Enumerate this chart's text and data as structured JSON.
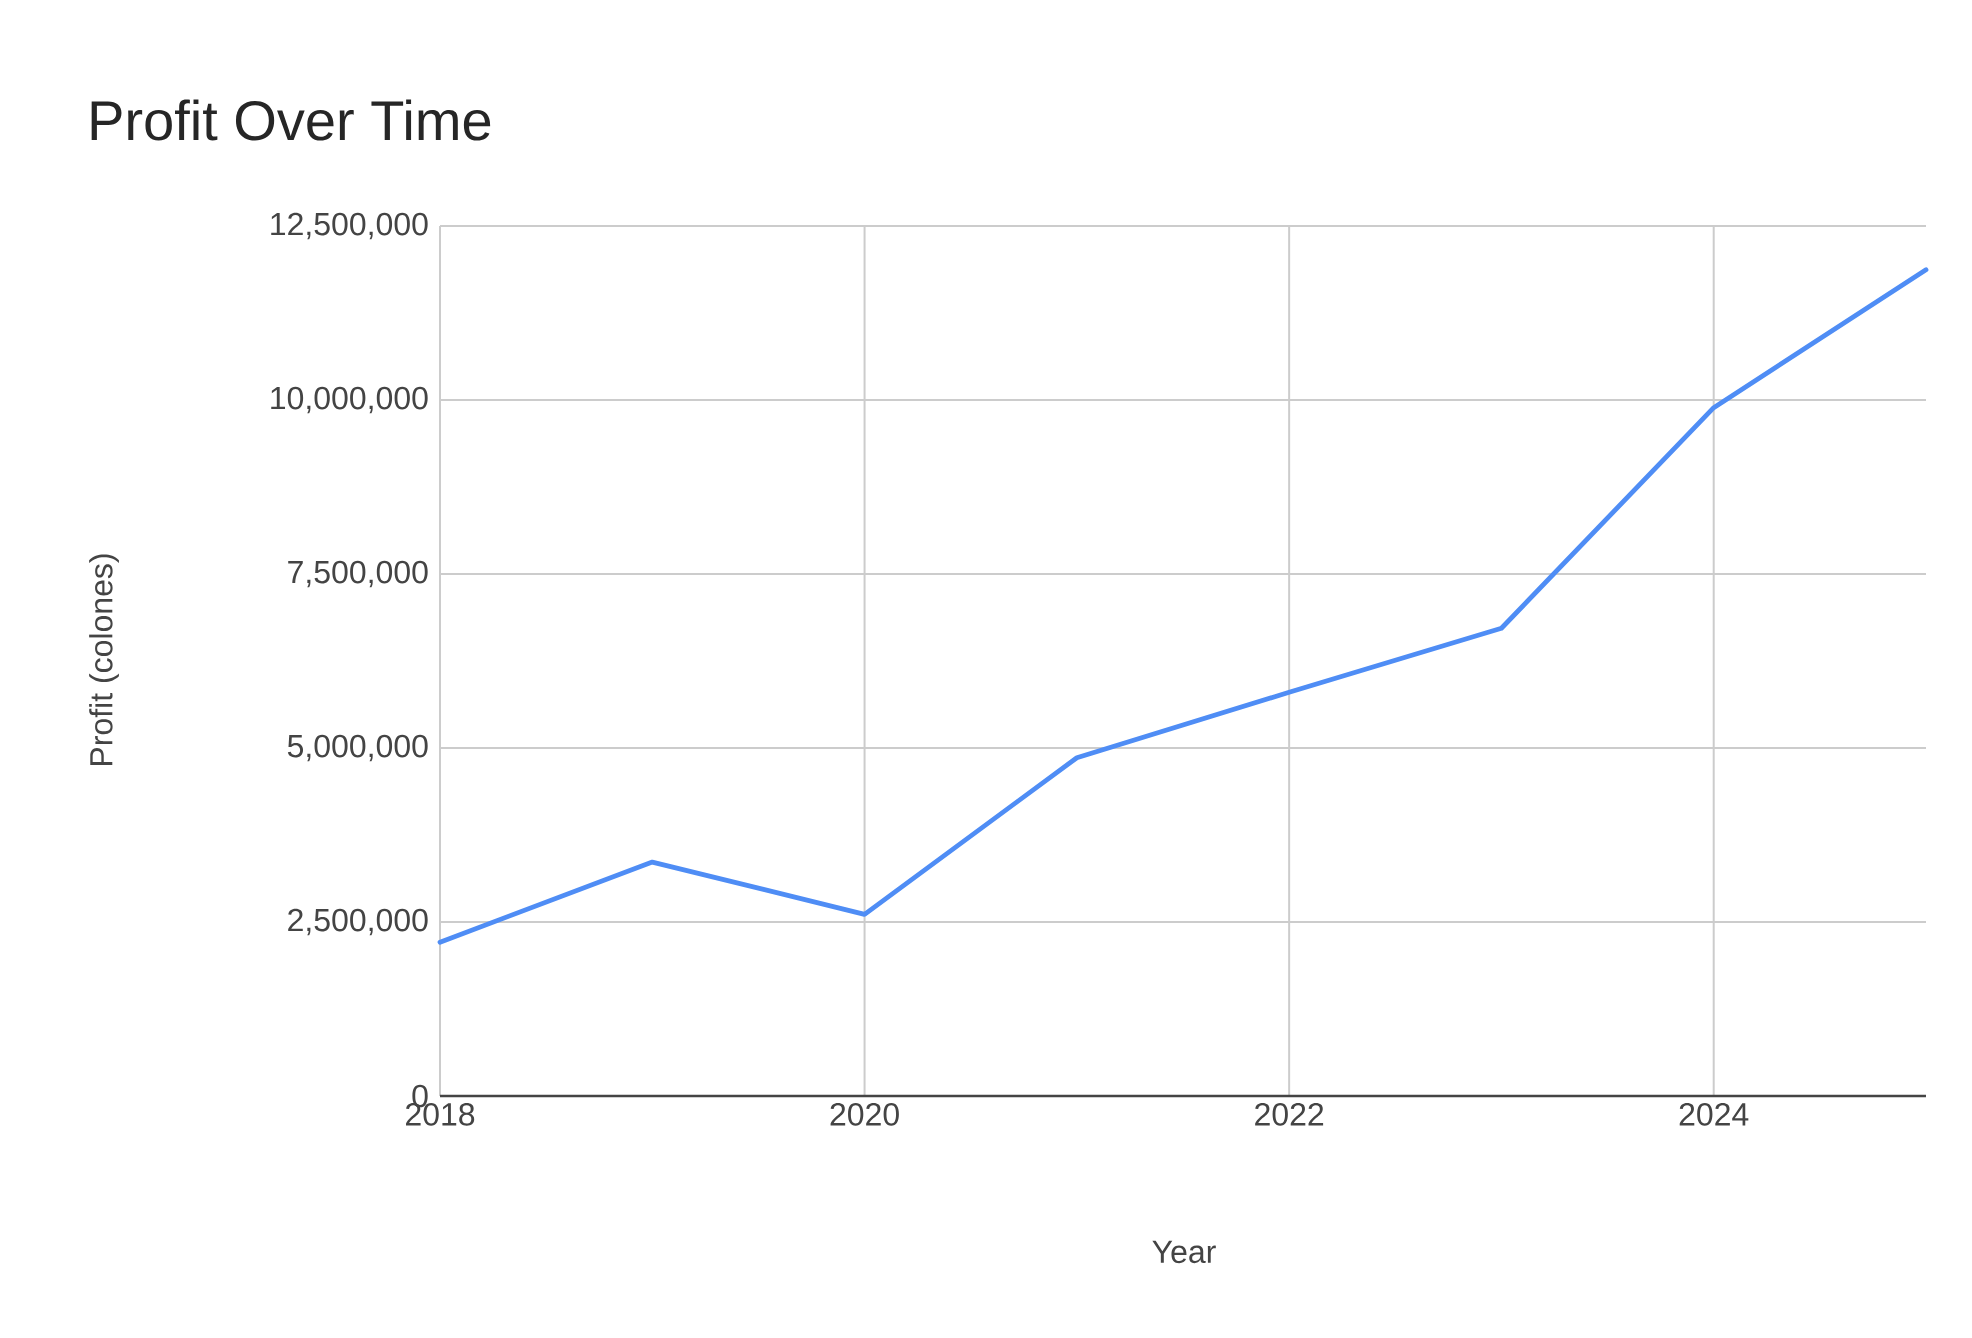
{
  "chart_data": {
    "type": "line",
    "title": "Profit Over Time",
    "xlabel": "Year",
    "ylabel": "Profit (colones)",
    "x": [
      2018,
      2019,
      2020,
      2021,
      2022,
      2023,
      2024,
      2025
    ],
    "series": [
      {
        "color": "#4f8df5",
        "values": [
          2210000,
          3360000,
          2610000,
          4860000,
          5800000,
          6720000,
          9890000,
          11870000
        ]
      }
    ],
    "xlim": [
      2018,
      2025
    ],
    "xticks": [
      2018,
      2020,
      2022,
      2024
    ],
    "ylim": [
      0,
      12500000
    ],
    "yticks": [
      {
        "value": 0,
        "label": "0"
      },
      {
        "value": 2500000,
        "label": "2,500,000"
      },
      {
        "value": 5000000,
        "label": "5,000,000"
      },
      {
        "value": 7500000,
        "label": "7,500,000"
      },
      {
        "value": 10000000,
        "label": "10,000,000"
      },
      {
        "value": 12500000,
        "label": "12,500,000"
      }
    ],
    "grid": true
  }
}
